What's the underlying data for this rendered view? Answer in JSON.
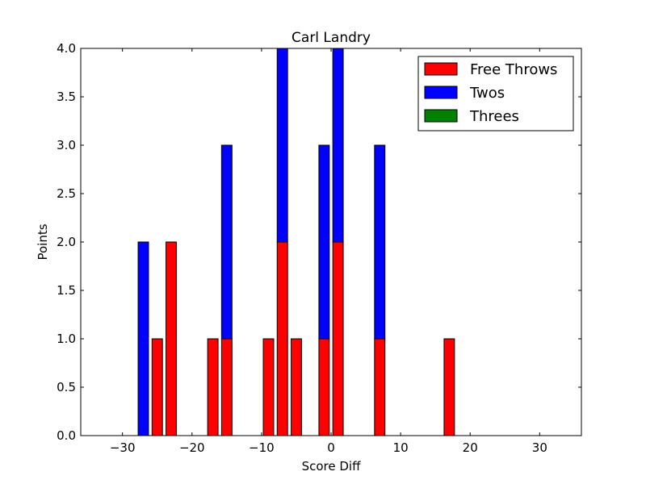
{
  "chart_data": {
    "type": "bar",
    "stacked": true,
    "title": "Carl Landry",
    "xlabel": "Score Diff",
    "ylabel": "Points",
    "xlim": [
      -36,
      36
    ],
    "ylim": [
      0,
      4
    ],
    "xticks": [
      -30,
      -20,
      -10,
      0,
      10,
      20,
      30
    ],
    "yticks": [
      0.0,
      0.5,
      1.0,
      1.5,
      2.0,
      2.5,
      3.0,
      3.5,
      4.0
    ],
    "xtick_labels": [
      "−30",
      "−20",
      "−10",
      "0",
      "10",
      "20",
      "30"
    ],
    "ytick_labels": [
      "0.0",
      "0.5",
      "1.0",
      "1.5",
      "2.0",
      "2.5",
      "3.0",
      "3.5",
      "4.0"
    ],
    "bar_width": 1.5,
    "x": [
      -35,
      -34,
      -33,
      -32,
      -31,
      -30,
      -29,
      -28,
      -27,
      -26,
      -25,
      -24,
      -23,
      -22,
      -21,
      -20,
      -19,
      -18,
      -17,
      -16,
      -15,
      -14,
      -13,
      -12,
      -11,
      -10,
      -9,
      -8,
      -7,
      -6,
      -5,
      -4,
      -3,
      -2,
      -1,
      0,
      1,
      2,
      3,
      4,
      5,
      6,
      7,
      8,
      9,
      10,
      11,
      12,
      13,
      14,
      15,
      16,
      17,
      18,
      19,
      20,
      21,
      22,
      23,
      24,
      25,
      26,
      27,
      28,
      29,
      30,
      31,
      32,
      33,
      34,
      35
    ],
    "series": [
      {
        "name": "Free Throws",
        "color": "#ff0000",
        "values": [
          0,
          0,
          0,
          0,
          0,
          0,
          0,
          0,
          0,
          0,
          1,
          0,
          2,
          0,
          0,
          0,
          0,
          0,
          1,
          0,
          1,
          0,
          0,
          0,
          0,
          0,
          1,
          0,
          2,
          0,
          1,
          0,
          0,
          0,
          1,
          0,
          2,
          0,
          0,
          0,
          0,
          0,
          1,
          0,
          0,
          0,
          0,
          0,
          0,
          0,
          0,
          0,
          1,
          0,
          0,
          0,
          0,
          0,
          0,
          0,
          0,
          0,
          0,
          0,
          0,
          0,
          0,
          0,
          0,
          0,
          0
        ]
      },
      {
        "name": "Twos",
        "color": "#0000ff",
        "values": [
          0,
          0,
          0,
          0,
          0,
          0,
          0,
          0,
          2,
          0,
          0,
          0,
          0,
          0,
          0,
          0,
          0,
          0,
          0,
          0,
          2,
          0,
          0,
          0,
          0,
          0,
          0,
          0,
          2,
          0,
          0,
          0,
          0,
          0,
          2,
          0,
          2,
          0,
          0,
          0,
          0,
          0,
          2,
          0,
          0,
          0,
          0,
          0,
          0,
          0,
          0,
          0,
          0,
          0,
          0,
          0,
          0,
          0,
          0,
          0,
          0,
          0,
          0,
          0,
          0,
          0,
          0,
          0,
          0,
          0,
          0
        ]
      },
      {
        "name": "Threes",
        "color": "#008000",
        "values": [
          0,
          0,
          0,
          0,
          0,
          0,
          0,
          0,
          0,
          0,
          0,
          0,
          0,
          0,
          0,
          0,
          0,
          0,
          0,
          0,
          0,
          0,
          0,
          0,
          0,
          0,
          0,
          0,
          0,
          0,
          0,
          0,
          0,
          0,
          0,
          0,
          0,
          0,
          0,
          0,
          0,
          0,
          0,
          0,
          0,
          0,
          0,
          0,
          0,
          0,
          0,
          0,
          0,
          0,
          0,
          0,
          0,
          0,
          0,
          0,
          0,
          0,
          0,
          0,
          0,
          0,
          0,
          0,
          0,
          0,
          0
        ]
      }
    ],
    "legend": {
      "position": "top-right"
    },
    "grid": false
  }
}
